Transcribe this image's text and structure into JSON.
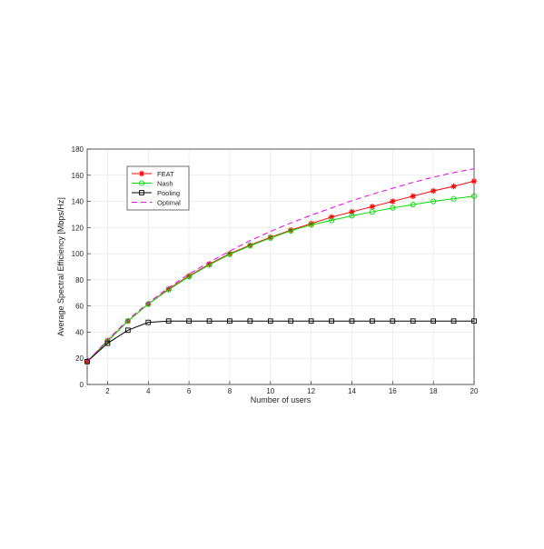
{
  "chart_data": {
    "type": "line",
    "title": "",
    "xlabel": "Number of users",
    "ylabel": "Average Spectral Efficiency [Mbps/Hz]",
    "xlim": [
      1,
      20
    ],
    "ylim": [
      0,
      180
    ],
    "xticks": [
      2,
      4,
      6,
      8,
      10,
      12,
      14,
      16,
      18,
      20
    ],
    "yticks": [
      0,
      20,
      40,
      60,
      80,
      100,
      120,
      140,
      160,
      180
    ],
    "grid": true,
    "legend_position": "top-left",
    "x": [
      1,
      2,
      3,
      4,
      5,
      6,
      7,
      8,
      9,
      10,
      11,
      12,
      13,
      14,
      15,
      16,
      17,
      18,
      19,
      20
    ],
    "series": [
      {
        "name": "FEAT",
        "color": "#ff0000",
        "marker": "star",
        "line_style": "solid",
        "values": [
          17.5,
          33.5,
          48.5,
          61.5,
          73,
          83,
          92,
          100,
          106.5,
          112.5,
          118,
          123,
          128,
          132,
          136,
          140,
          144,
          148,
          151.5,
          155.5
        ]
      },
      {
        "name": "Nash",
        "color": "#00dd00",
        "marker": "circle",
        "line_style": "solid",
        "values": [
          17.5,
          33,
          48.5,
          61.5,
          72.5,
          82.5,
          91.5,
          99.5,
          106,
          112,
          117.5,
          122,
          125.5,
          129,
          132,
          135,
          137.5,
          140,
          142,
          144
        ]
      },
      {
        "name": "Pooling",
        "color": "#000000",
        "marker": "square",
        "line_style": "solid",
        "values": [
          17.5,
          31.5,
          41.5,
          47.5,
          48.5,
          48.5,
          48.5,
          48.5,
          48.5,
          48.5,
          48.5,
          48.5,
          48.5,
          48.5,
          48.5,
          48.5,
          48.5,
          48.5,
          48.5,
          48.5
        ]
      },
      {
        "name": "Optimal",
        "color": "#ee00ee",
        "marker": "none",
        "line_style": "dashed",
        "values": [
          17.5,
          34,
          49.5,
          62.5,
          74,
          84.5,
          93.5,
          102,
          110,
          117,
          123.5,
          129.5,
          135,
          140.5,
          145.5,
          150,
          154.5,
          158.5,
          162,
          165
        ]
      }
    ]
  }
}
